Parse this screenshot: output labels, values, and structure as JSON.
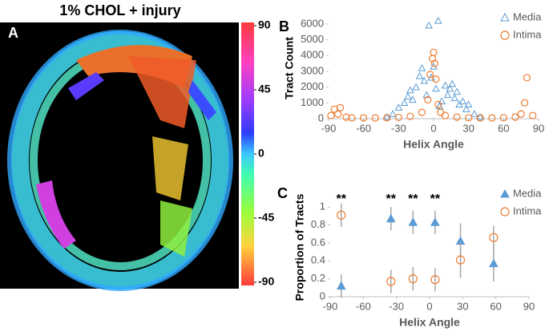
{
  "panel_a": {
    "title": "1% CHOL + injury",
    "panel_label": "A",
    "colorbar": {
      "lim": [
        -90,
        90
      ],
      "ticks": [
        90,
        45,
        0,
        -45,
        -90
      ]
    }
  },
  "chart_data": [
    {
      "type": "scatter",
      "panel_label": "B",
      "y_label": "Tract Count",
      "x_label": "Helix Angle",
      "xlim": [
        -90,
        90
      ],
      "xticks": [
        -90,
        -60,
        -30,
        0,
        30,
        60,
        90
      ],
      "ylim": [
        0,
        6400
      ],
      "yticks": [
        0,
        1000,
        2000,
        3000,
        4000,
        5000,
        6000
      ],
      "legend": "upper right",
      "series": [
        {
          "name": "Media",
          "color": "#5b9bd5",
          "marker": "triangle",
          "filled": false,
          "x": [
            -40,
            -35,
            -30,
            -25,
            -22,
            -20,
            -18,
            -15,
            -12,
            -10,
            -8,
            -6,
            -4,
            -2,
            0,
            2,
            4,
            5,
            7,
            10,
            12,
            14,
            16,
            18,
            20,
            22,
            25,
            28,
            30,
            35,
            40
          ],
          "y": [
            100,
            300,
            700,
            1000,
            1400,
            1800,
            1200,
            2000,
            2700,
            3200,
            2400,
            1500,
            5900,
            2600,
            3300,
            1900,
            6200,
            800,
            1100,
            2100,
            1500,
            1900,
            2200,
            1300,
            1700,
            900,
            1100,
            600,
            900,
            300,
            100
          ]
        },
        {
          "name": "Intima",
          "color": "#ed7d31",
          "marker": "circle",
          "filled": false,
          "x": [
            -88,
            -85,
            -82,
            -80,
            -75,
            -70,
            -60,
            -50,
            -40,
            -30,
            -20,
            -10,
            -5,
            -3,
            -1,
            0,
            1,
            2,
            4,
            6,
            10,
            20,
            30,
            40,
            50,
            60,
            70,
            75,
            78,
            80,
            85
          ],
          "y": [
            200,
            600,
            300,
            700,
            100,
            50,
            50,
            50,
            60,
            80,
            150,
            400,
            1200,
            2800,
            3800,
            4200,
            3500,
            2500,
            900,
            400,
            200,
            100,
            60,
            50,
            50,
            60,
            100,
            300,
            1000,
            2600,
            200
          ]
        }
      ]
    },
    {
      "type": "scatter",
      "panel_label": "C",
      "y_label": "Proportion of Tracts",
      "x_label": "Helix Angle",
      "xlim": [
        -90,
        90
      ],
      "xticks": [
        -90,
        -60,
        -30,
        0,
        30,
        60,
        90
      ],
      "ylim": [
        0,
        1.1
      ],
      "yticks": [
        0,
        0.2,
        0.4,
        0.6,
        0.8,
        1
      ],
      "legend": "upper right",
      "annotations": [
        {
          "text": "**",
          "x": -80
        },
        {
          "text": "**",
          "x": -35
        },
        {
          "text": "**",
          "x": -15
        },
        {
          "text": "**",
          "x": 5
        }
      ],
      "series": [
        {
          "name": "Media",
          "color": "#5b9bd5",
          "marker": "triangle",
          "filled": true,
          "x": [
            -80,
            -35,
            -15,
            5,
            28,
            58
          ],
          "y": [
            0.12,
            0.87,
            0.83,
            0.83,
            0.62,
            0.37
          ],
          "error": [
            0.13,
            0.13,
            0.13,
            0.13,
            0.2,
            0.2
          ]
        },
        {
          "name": "Intima",
          "color": "#ed7d31",
          "marker": "circle",
          "filled": false,
          "x": [
            -80,
            -35,
            -15,
            5,
            28,
            58
          ],
          "y": [
            0.91,
            0.17,
            0.2,
            0.19,
            0.41,
            0.66
          ],
          "error": [
            0.13,
            0.13,
            0.13,
            0.13,
            0.2,
            0.13
          ]
        }
      ]
    }
  ]
}
